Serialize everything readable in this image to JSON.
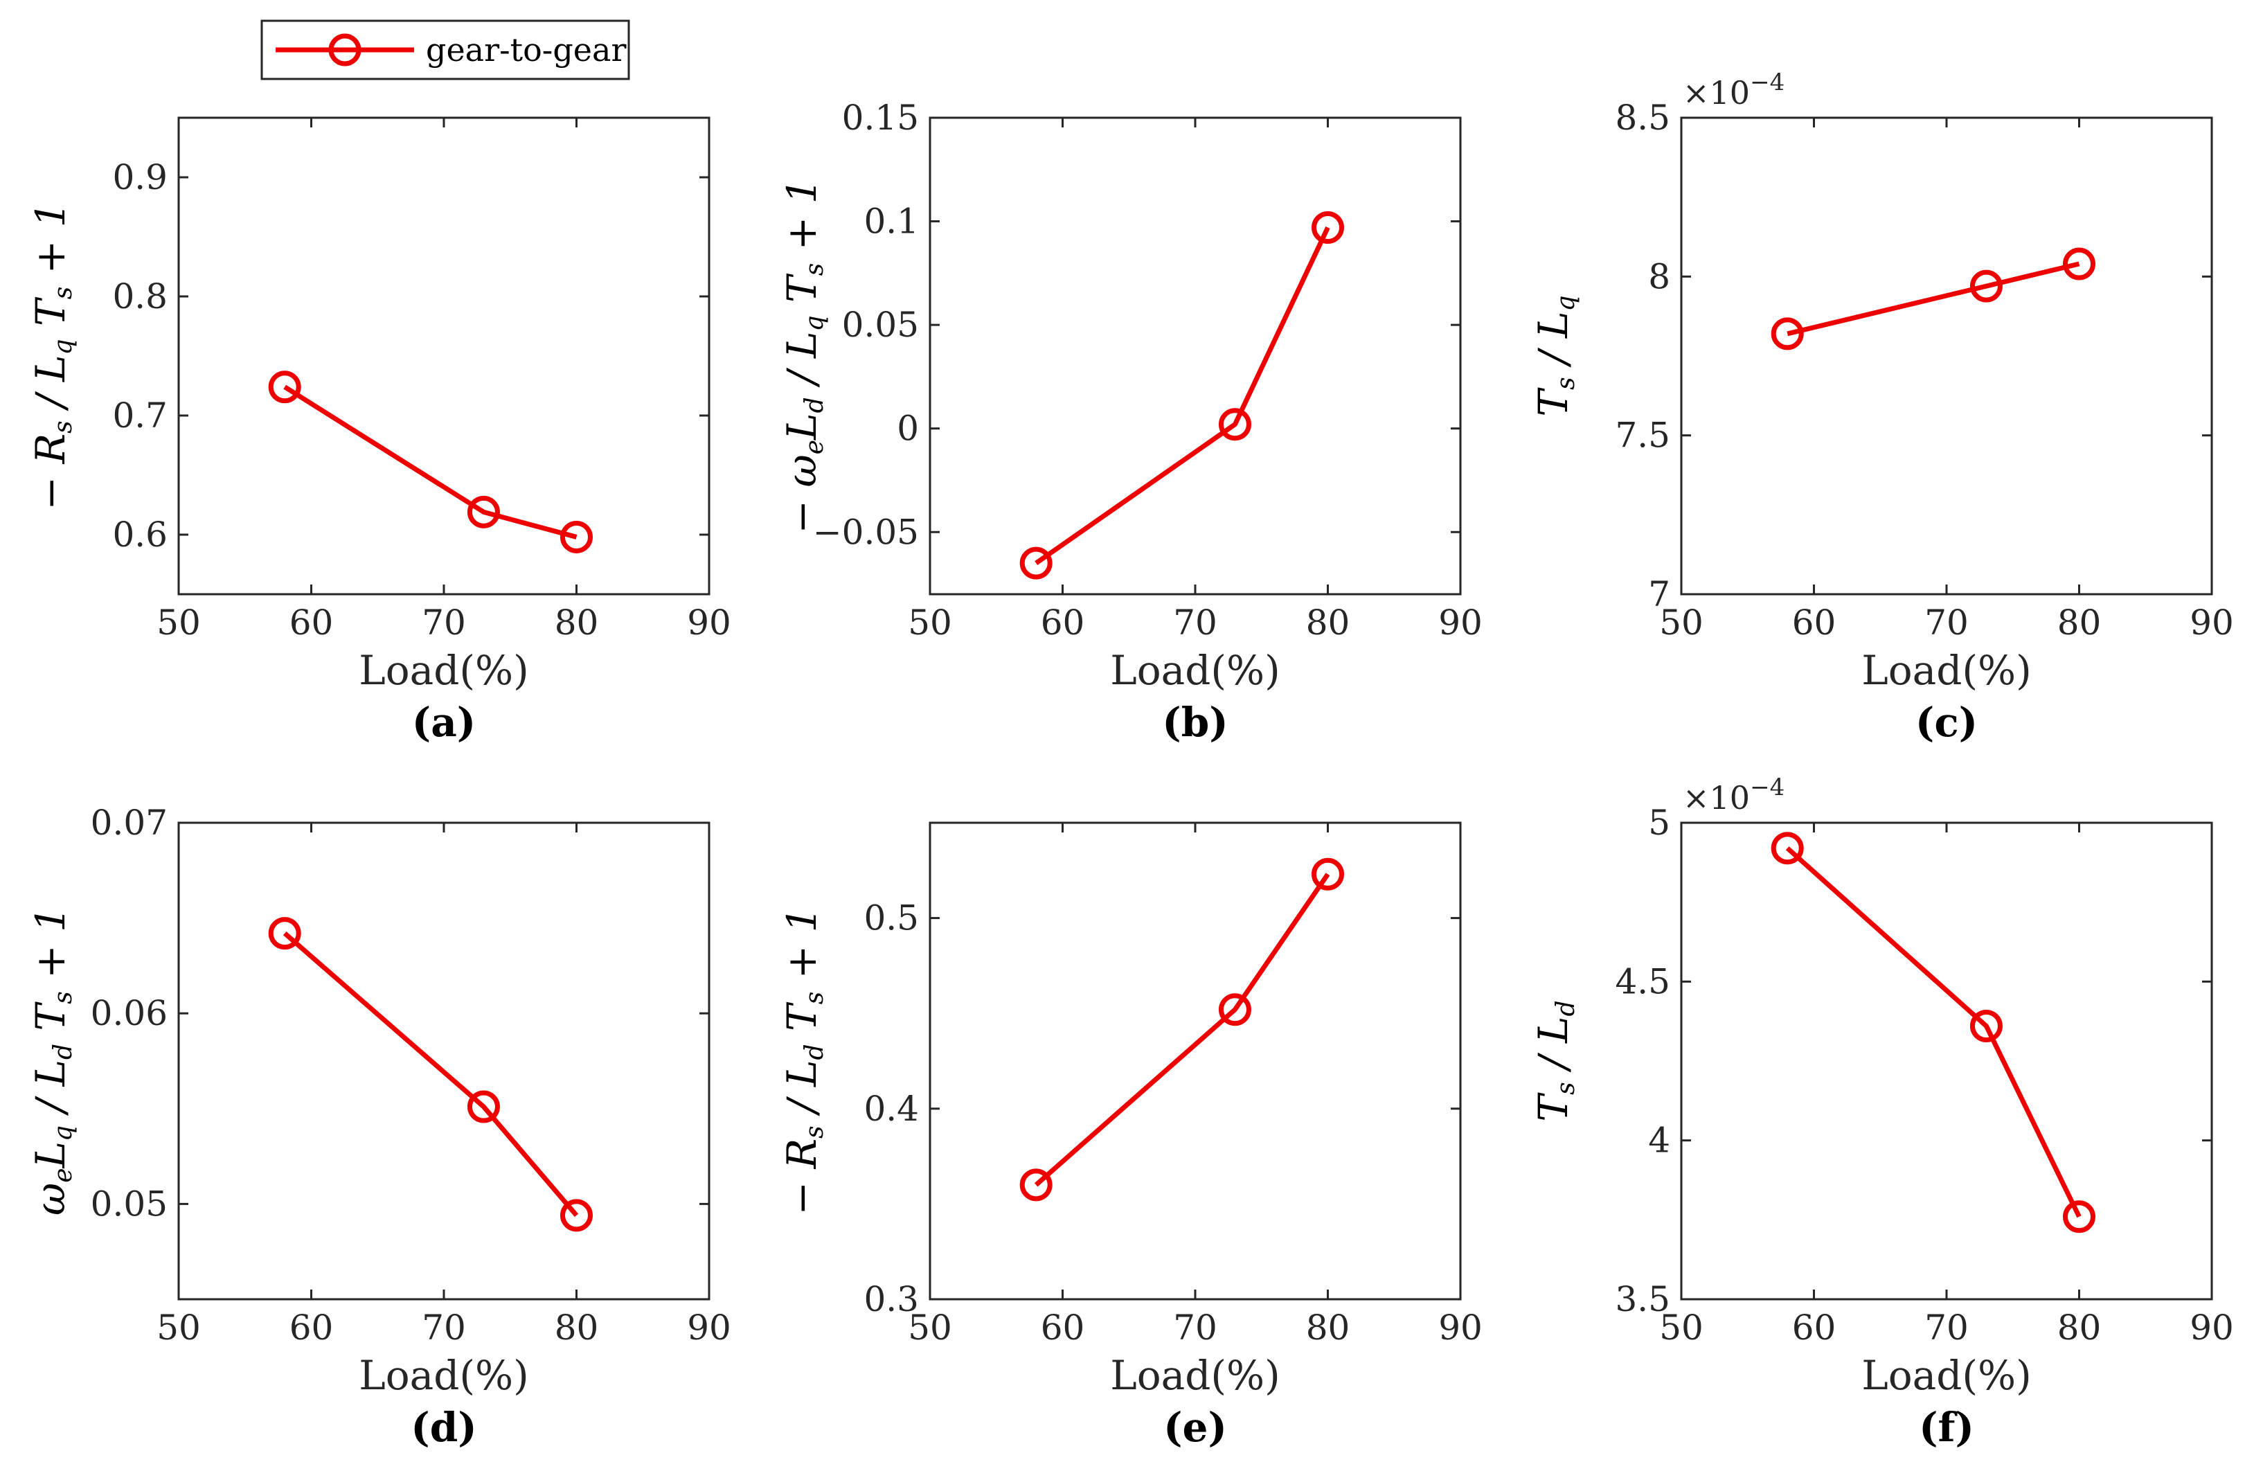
{
  "legend": {
    "label": "gear-to-gear"
  },
  "colors": {
    "series": "#ee0000",
    "axis": "#262626",
    "text": "#000000"
  },
  "chart_data": [
    {
      "id": "a",
      "type": "line",
      "panel_label": "(a)",
      "xlabel": "Load(%)",
      "ylabel": {
        "prefix": "−",
        "num": "R",
        "num_sub": "s",
        "den": "L",
        "den_sub": "q",
        "tail_main": "T",
        "tail_sub": "s",
        "tail_end": " + 1"
      },
      "x": [
        58,
        73,
        80
      ],
      "y": [
        0.724,
        0.619,
        0.598
      ],
      "xlim": [
        50,
        90
      ],
      "ylim": [
        0.55,
        0.95
      ],
      "xticks": [
        50,
        60,
        70,
        80,
        90
      ],
      "xtick_labels": [
        "50",
        "60",
        "70",
        "80",
        "90"
      ],
      "yticks": [
        0.6,
        0.7,
        0.8,
        0.9
      ],
      "ytick_labels": [
        "0.6",
        "0.7",
        "0.8",
        "0.9"
      ],
      "multiplier": null,
      "series_name": "gear-to-gear"
    },
    {
      "id": "b",
      "type": "line",
      "panel_label": "(b)",
      "xlabel": "Load(%)",
      "ylabel": {
        "prefix": "−",
        "num": "ω",
        "num_sub": "e",
        "num2": "L",
        "num2_sub": "d",
        "den": "L",
        "den_sub": "q",
        "tail_main": "T",
        "tail_sub": "s",
        "tail_end": " + 1"
      },
      "x": [
        58,
        73,
        80
      ],
      "y": [
        -0.065,
        0.002,
        0.097
      ],
      "xlim": [
        50,
        90
      ],
      "ylim": [
        -0.08,
        0.15
      ],
      "xticks": [
        50,
        60,
        70,
        80,
        90
      ],
      "xtick_labels": [
        "50",
        "60",
        "70",
        "80",
        "90"
      ],
      "yticks": [
        -0.05,
        0,
        0.05,
        0.1,
        0.15
      ],
      "ytick_labels": [
        "−0.05",
        "0",
        "0.05",
        "0.1",
        "0.15"
      ],
      "multiplier": null,
      "series_name": "gear-to-gear"
    },
    {
      "id": "c",
      "type": "line",
      "panel_label": "(c)",
      "xlabel": "Load(%)",
      "ylabel": {
        "prefix": "",
        "num": "T",
        "num_sub": "s",
        "den": "L",
        "den_sub": "q",
        "tail_main": "",
        "tail_sub": "",
        "tail_end": ""
      },
      "x": [
        58,
        73,
        80
      ],
      "y": [
        7.82,
        7.97,
        8.04
      ],
      "xlim": [
        50,
        90
      ],
      "ylim": [
        7.0,
        8.5
      ],
      "xticks": [
        50,
        60,
        70,
        80,
        90
      ],
      "xtick_labels": [
        "50",
        "60",
        "70",
        "80",
        "90"
      ],
      "yticks": [
        7.0,
        7.5,
        8.0,
        8.5
      ],
      "ytick_labels": [
        "7",
        "7.5",
        "8",
        "8.5"
      ],
      "multiplier": {
        "base": "×10",
        "exp": "−4"
      },
      "series_name": "gear-to-gear"
    },
    {
      "id": "d",
      "type": "line",
      "panel_label": "(d)",
      "xlabel": "Load(%)",
      "ylabel": {
        "prefix": "",
        "num": "ω",
        "num_sub": "e",
        "num2": "L",
        "num2_sub": "q",
        "den": "L",
        "den_sub": "d",
        "tail_main": "T",
        "tail_sub": "s",
        "tail_end": " + 1"
      },
      "x": [
        58,
        73,
        80
      ],
      "y": [
        0.0642,
        0.0551,
        0.0494
      ],
      "xlim": [
        50,
        90
      ],
      "ylim": [
        0.045,
        0.07
      ],
      "xticks": [
        50,
        60,
        70,
        80,
        90
      ],
      "xtick_labels": [
        "50",
        "60",
        "70",
        "80",
        "90"
      ],
      "yticks": [
        0.05,
        0.06,
        0.07
      ],
      "ytick_labels": [
        "0.05",
        "0.06",
        "0.07"
      ],
      "multiplier": null,
      "series_name": "gear-to-gear"
    },
    {
      "id": "e",
      "type": "line",
      "panel_label": "(e)",
      "xlabel": "Load(%)",
      "ylabel": {
        "prefix": "−",
        "num": "R",
        "num_sub": "s",
        "den": "L",
        "den_sub": "d",
        "tail_main": "T",
        "tail_sub": "s",
        "tail_end": " + 1"
      },
      "x": [
        58,
        73,
        80
      ],
      "y": [
        0.36,
        0.452,
        0.523
      ],
      "xlim": [
        50,
        90
      ],
      "ylim": [
        0.3,
        0.55
      ],
      "xticks": [
        50,
        60,
        70,
        80,
        90
      ],
      "xtick_labels": [
        "50",
        "60",
        "70",
        "80",
        "90"
      ],
      "yticks": [
        0.3,
        0.4,
        0.5
      ],
      "ytick_labels": [
        "0.3",
        "0.4",
        "0.5"
      ],
      "multiplier": null,
      "series_name": "gear-to-gear"
    },
    {
      "id": "f",
      "type": "line",
      "panel_label": "(f)",
      "xlabel": "Load(%)",
      "ylabel": {
        "prefix": "",
        "num": "T",
        "num_sub": "s",
        "den": "L",
        "den_sub": "d",
        "tail_main": "",
        "tail_sub": "",
        "tail_end": ""
      },
      "x": [
        58,
        73,
        80
      ],
      "y": [
        4.92,
        4.36,
        3.76
      ],
      "xlim": [
        50,
        90
      ],
      "ylim": [
        3.5,
        5.0
      ],
      "xticks": [
        50,
        60,
        70,
        80,
        90
      ],
      "xtick_labels": [
        "50",
        "60",
        "70",
        "80",
        "90"
      ],
      "yticks": [
        3.5,
        4.0,
        4.5,
        5.0
      ],
      "ytick_labels": [
        "3.5",
        "4",
        "4.5",
        "5"
      ],
      "multiplier": {
        "base": "×10",
        "exp": "−4"
      },
      "series_name": "gear-to-gear"
    }
  ]
}
